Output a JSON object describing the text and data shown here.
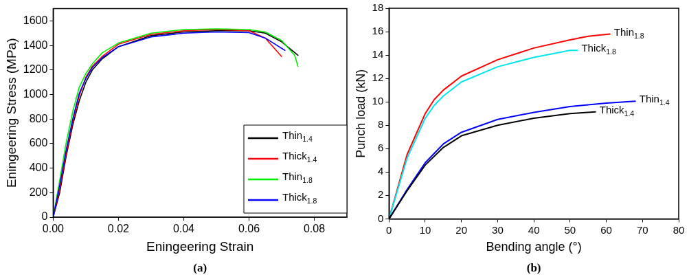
{
  "chart_data": [
    {
      "type": "line",
      "xlabel": "Eningeering Strain",
      "ylabel": "Eningeering Stress (MPa)",
      "annotations": [
        "(a)"
      ],
      "xlim": [
        0,
        0.09
      ],
      "xticks": [
        {
          "value": 0,
          "label": "0.00"
        },
        {
          "value": 0.02,
          "label": "0.02"
        },
        {
          "value": 0.04,
          "label": "0.04"
        },
        {
          "value": 0.06,
          "label": "0.06"
        },
        {
          "value": 0.08,
          "label": "0.08"
        }
      ],
      "ylim": [
        0,
        1700
      ],
      "yticks": [
        0,
        200,
        400,
        600,
        800,
        1000,
        1200,
        1400,
        1600
      ],
      "grid": false,
      "legend": "bottom right",
      "marker": "none",
      "line_style": "solid",
      "series": [
        {
          "name": "Thin$_{1.4}$",
          "color": "#000000",
          "x": [
            0,
            0.002,
            0.004,
            0.006,
            0.008,
            0.01,
            0.012,
            0.015,
            0.02,
            0.03,
            0.04,
            0.05,
            0.06,
            0.065,
            0.07,
            0.075
          ],
          "values": [
            0,
            200,
            500,
            750,
            950,
            1100,
            1200,
            1290,
            1390,
            1480,
            1510,
            1520,
            1520,
            1500,
            1430,
            1320
          ]
        },
        {
          "name": "Thick$_{1.4}$",
          "color": "#ff0000",
          "x": [
            0,
            0.002,
            0.004,
            0.006,
            0.008,
            0.01,
            0.012,
            0.015,
            0.02,
            0.03,
            0.04,
            0.05,
            0.06,
            0.065,
            0.07
          ],
          "values": [
            0,
            230,
            520,
            780,
            990,
            1140,
            1230,
            1310,
            1410,
            1490,
            1520,
            1530,
            1520,
            1460,
            1310
          ]
        },
        {
          "name": "Thin$_{1.8}$",
          "color": "#00ee00",
          "x": [
            0,
            0.002,
            0.004,
            0.006,
            0.008,
            0.01,
            0.012,
            0.015,
            0.02,
            0.03,
            0.04,
            0.05,
            0.06,
            0.065,
            0.07,
            0.074,
            0.075
          ],
          "values": [
            0,
            300,
            610,
            860,
            1060,
            1170,
            1250,
            1340,
            1420,
            1500,
            1530,
            1535,
            1530,
            1510,
            1440,
            1320,
            1230
          ]
        },
        {
          "name": "Thick$_{1.8}$",
          "color": "#0000ff",
          "x": [
            0,
            0.002,
            0.004,
            0.006,
            0.008,
            0.01,
            0.012,
            0.015,
            0.02,
            0.03,
            0.04,
            0.05,
            0.06,
            0.065,
            0.071
          ],
          "values": [
            0,
            260,
            550,
            800,
            1010,
            1130,
            1220,
            1300,
            1390,
            1470,
            1500,
            1510,
            1505,
            1460,
            1360
          ]
        }
      ]
    },
    {
      "type": "line",
      "xlabel": "Bending angle (°)",
      "ylabel": "Punch load (kN)",
      "annotations": [
        "(b)"
      ],
      "xlim": [
        0,
        80
      ],
      "xticks": [
        0,
        10,
        20,
        30,
        40,
        50,
        60,
        70,
        80
      ],
      "ylim": [
        0,
        18
      ],
      "yticks": [
        0,
        2,
        4,
        6,
        8,
        10,
        12,
        14,
        16,
        18
      ],
      "grid": false,
      "legend": false,
      "marker": "none",
      "line_style": "solid",
      "series": [
        {
          "name": "Thin$_{1.8}$",
          "color": "#ff0000",
          "x": [
            0,
            5,
            10,
            12.5,
            15,
            20,
            30,
            40,
            50,
            55,
            61
          ],
          "values": [
            0,
            5.5,
            9,
            10.2,
            11,
            12.2,
            13.6,
            14.6,
            15.3,
            15.6,
            15.8
          ]
        },
        {
          "name": "Thick$_{1.8}$",
          "color": "#00e5ee",
          "x": [
            0,
            5,
            10,
            12.5,
            15,
            20,
            30,
            40,
            50,
            52
          ],
          "values": [
            0,
            5.2,
            8.6,
            9.7,
            10.5,
            11.7,
            13,
            13.8,
            14.4,
            14.4
          ]
        },
        {
          "name": "Thin$_{1.4}$",
          "color": "#0000ff",
          "x": [
            0,
            5,
            10,
            15,
            20,
            30,
            40,
            50,
            60,
            68
          ],
          "values": [
            0,
            2.5,
            4.8,
            6.4,
            7.4,
            8.5,
            9.1,
            9.6,
            9.9,
            10.05
          ]
        },
        {
          "name": "Thick$_{1.4}$",
          "color": "#000000",
          "x": [
            0,
            5,
            10,
            15,
            20,
            30,
            40,
            50,
            57
          ],
          "values": [
            0,
            2.4,
            4.6,
            6.1,
            7.1,
            8,
            8.6,
            9,
            9.15
          ]
        }
      ]
    }
  ]
}
